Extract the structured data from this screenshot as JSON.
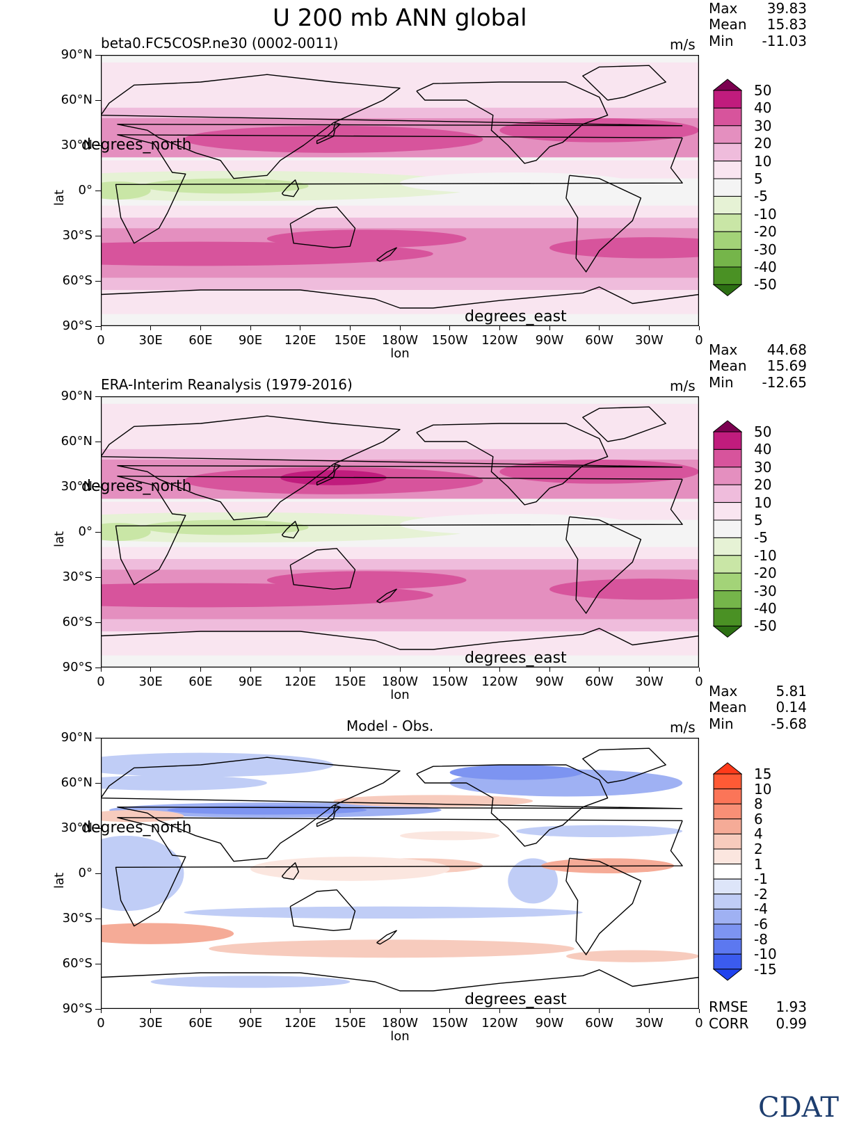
{
  "figure_title": "U 200 mb ANN global",
  "logo_text": "CDAT",
  "units": "m/s",
  "stat_labels": {
    "max": "Max",
    "mean": "Mean",
    "min": "Min",
    "rmse": "RMSE",
    "corr": "CORR"
  },
  "panels": [
    {
      "subtitle": "beta0.FC5COSP.ne30 (0002-0011)",
      "max": "39.83",
      "mean": "15.83",
      "min": "-11.03"
    },
    {
      "subtitle": "ERA-Interim Reanalysis (1979-2016)",
      "max": "44.68",
      "mean": "15.69",
      "min": "-12.65"
    },
    {
      "subtitle": "Model - Obs.",
      "max": "5.81",
      "mean": "0.14",
      "min": "-5.68",
      "rmse": "1.93",
      "corr": "0.99"
    }
  ],
  "axis": {
    "y_title": "lat",
    "x_title": "lon",
    "lat_units_label": "degrees_north",
    "lon_units_label": "degrees_east"
  },
  "chart_data": [
    {
      "type": "heatmap",
      "title": "beta0.FC5COSP.ne30 (0002-0011)",
      "field": "U 200 mb ANN",
      "units": "m/s",
      "xlabel": "lon",
      "ylabel": "lat",
      "xlim": [
        0,
        360
      ],
      "ylim": [
        -90,
        90
      ],
      "x_ticks": [
        "0",
        "30E",
        "60E",
        "90E",
        "120E",
        "150E",
        "180W",
        "150W",
        "120W",
        "90W",
        "60W",
        "30W",
        "0"
      ],
      "y_ticks": [
        "90°N",
        "60°N",
        "30°N",
        "0°",
        "30°S",
        "60°S",
        "90°S"
      ],
      "colorbar_levels": [
        "50",
        "40",
        "30",
        "20",
        "10",
        "5",
        "-5",
        "-10",
        "-20",
        "-30",
        "-40",
        "-50"
      ],
      "colorbar_colors": [
        "#7b0050",
        "#c01c7d",
        "#d7549c",
        "#e48fbf",
        "#efbcdc",
        "#f9e5f0",
        "#f4f4f4",
        "#e6f2d5",
        "#c9e6a6",
        "#a3d378",
        "#75b54a",
        "#4a9124",
        "#2c6f13"
      ],
      "stats": {
        "max": 39.83,
        "mean": 15.83,
        "min": -11.03
      }
    },
    {
      "type": "heatmap",
      "title": "ERA-Interim Reanalysis (1979-2016)",
      "field": "U 200 mb ANN",
      "units": "m/s",
      "xlabel": "lon",
      "ylabel": "lat",
      "xlim": [
        0,
        360
      ],
      "ylim": [
        -90,
        90
      ],
      "x_ticks": [
        "0",
        "30E",
        "60E",
        "90E",
        "120E",
        "150E",
        "180W",
        "150W",
        "120W",
        "90W",
        "60W",
        "30W",
        "0"
      ],
      "y_ticks": [
        "90°N",
        "60°N",
        "30°N",
        "0°",
        "30°S",
        "60°S",
        "90°S"
      ],
      "colorbar_levels": [
        "50",
        "40",
        "30",
        "20",
        "10",
        "5",
        "-5",
        "-10",
        "-20",
        "-30",
        "-40",
        "-50"
      ],
      "colorbar_colors": [
        "#7b0050",
        "#c01c7d",
        "#d7549c",
        "#e48fbf",
        "#efbcdc",
        "#f9e5f0",
        "#f4f4f4",
        "#e6f2d5",
        "#c9e6a6",
        "#a3d378",
        "#75b54a",
        "#4a9124",
        "#2c6f13"
      ],
      "stats": {
        "max": 44.68,
        "mean": 15.69,
        "min": -12.65
      }
    },
    {
      "type": "heatmap",
      "title": "Model - Obs.",
      "field": "U 200 mb ANN difference",
      "units": "m/s",
      "xlabel": "lon",
      "ylabel": "lat",
      "xlim": [
        0,
        360
      ],
      "ylim": [
        -90,
        90
      ],
      "x_ticks": [
        "0",
        "30E",
        "60E",
        "90E",
        "120E",
        "150E",
        "180W",
        "150W",
        "120W",
        "90W",
        "60W",
        "30W",
        "0"
      ],
      "y_ticks": [
        "90°N",
        "60°N",
        "30°N",
        "0°",
        "30°S",
        "60°S",
        "90°S"
      ],
      "colorbar_levels": [
        "15",
        "10",
        "8",
        "6",
        "4",
        "2",
        "1",
        "-1",
        "-2",
        "-4",
        "-6",
        "-8",
        "-10",
        "-15"
      ],
      "colorbar_colors": [
        "#ff3a1a",
        "#ff5a35",
        "#fb7558",
        "#f88f76",
        "#f5ab97",
        "#f7cbbd",
        "#fbe6df",
        "#ffffff",
        "#dde5f9",
        "#c0cdf6",
        "#9fb1f3",
        "#7d94f1",
        "#5c78f0",
        "#3b5bef",
        "#1f42ee"
      ],
      "stats": {
        "max": 5.81,
        "mean": 0.14,
        "min": -5.68,
        "rmse": 1.93,
        "corr": 0.99
      }
    }
  ]
}
